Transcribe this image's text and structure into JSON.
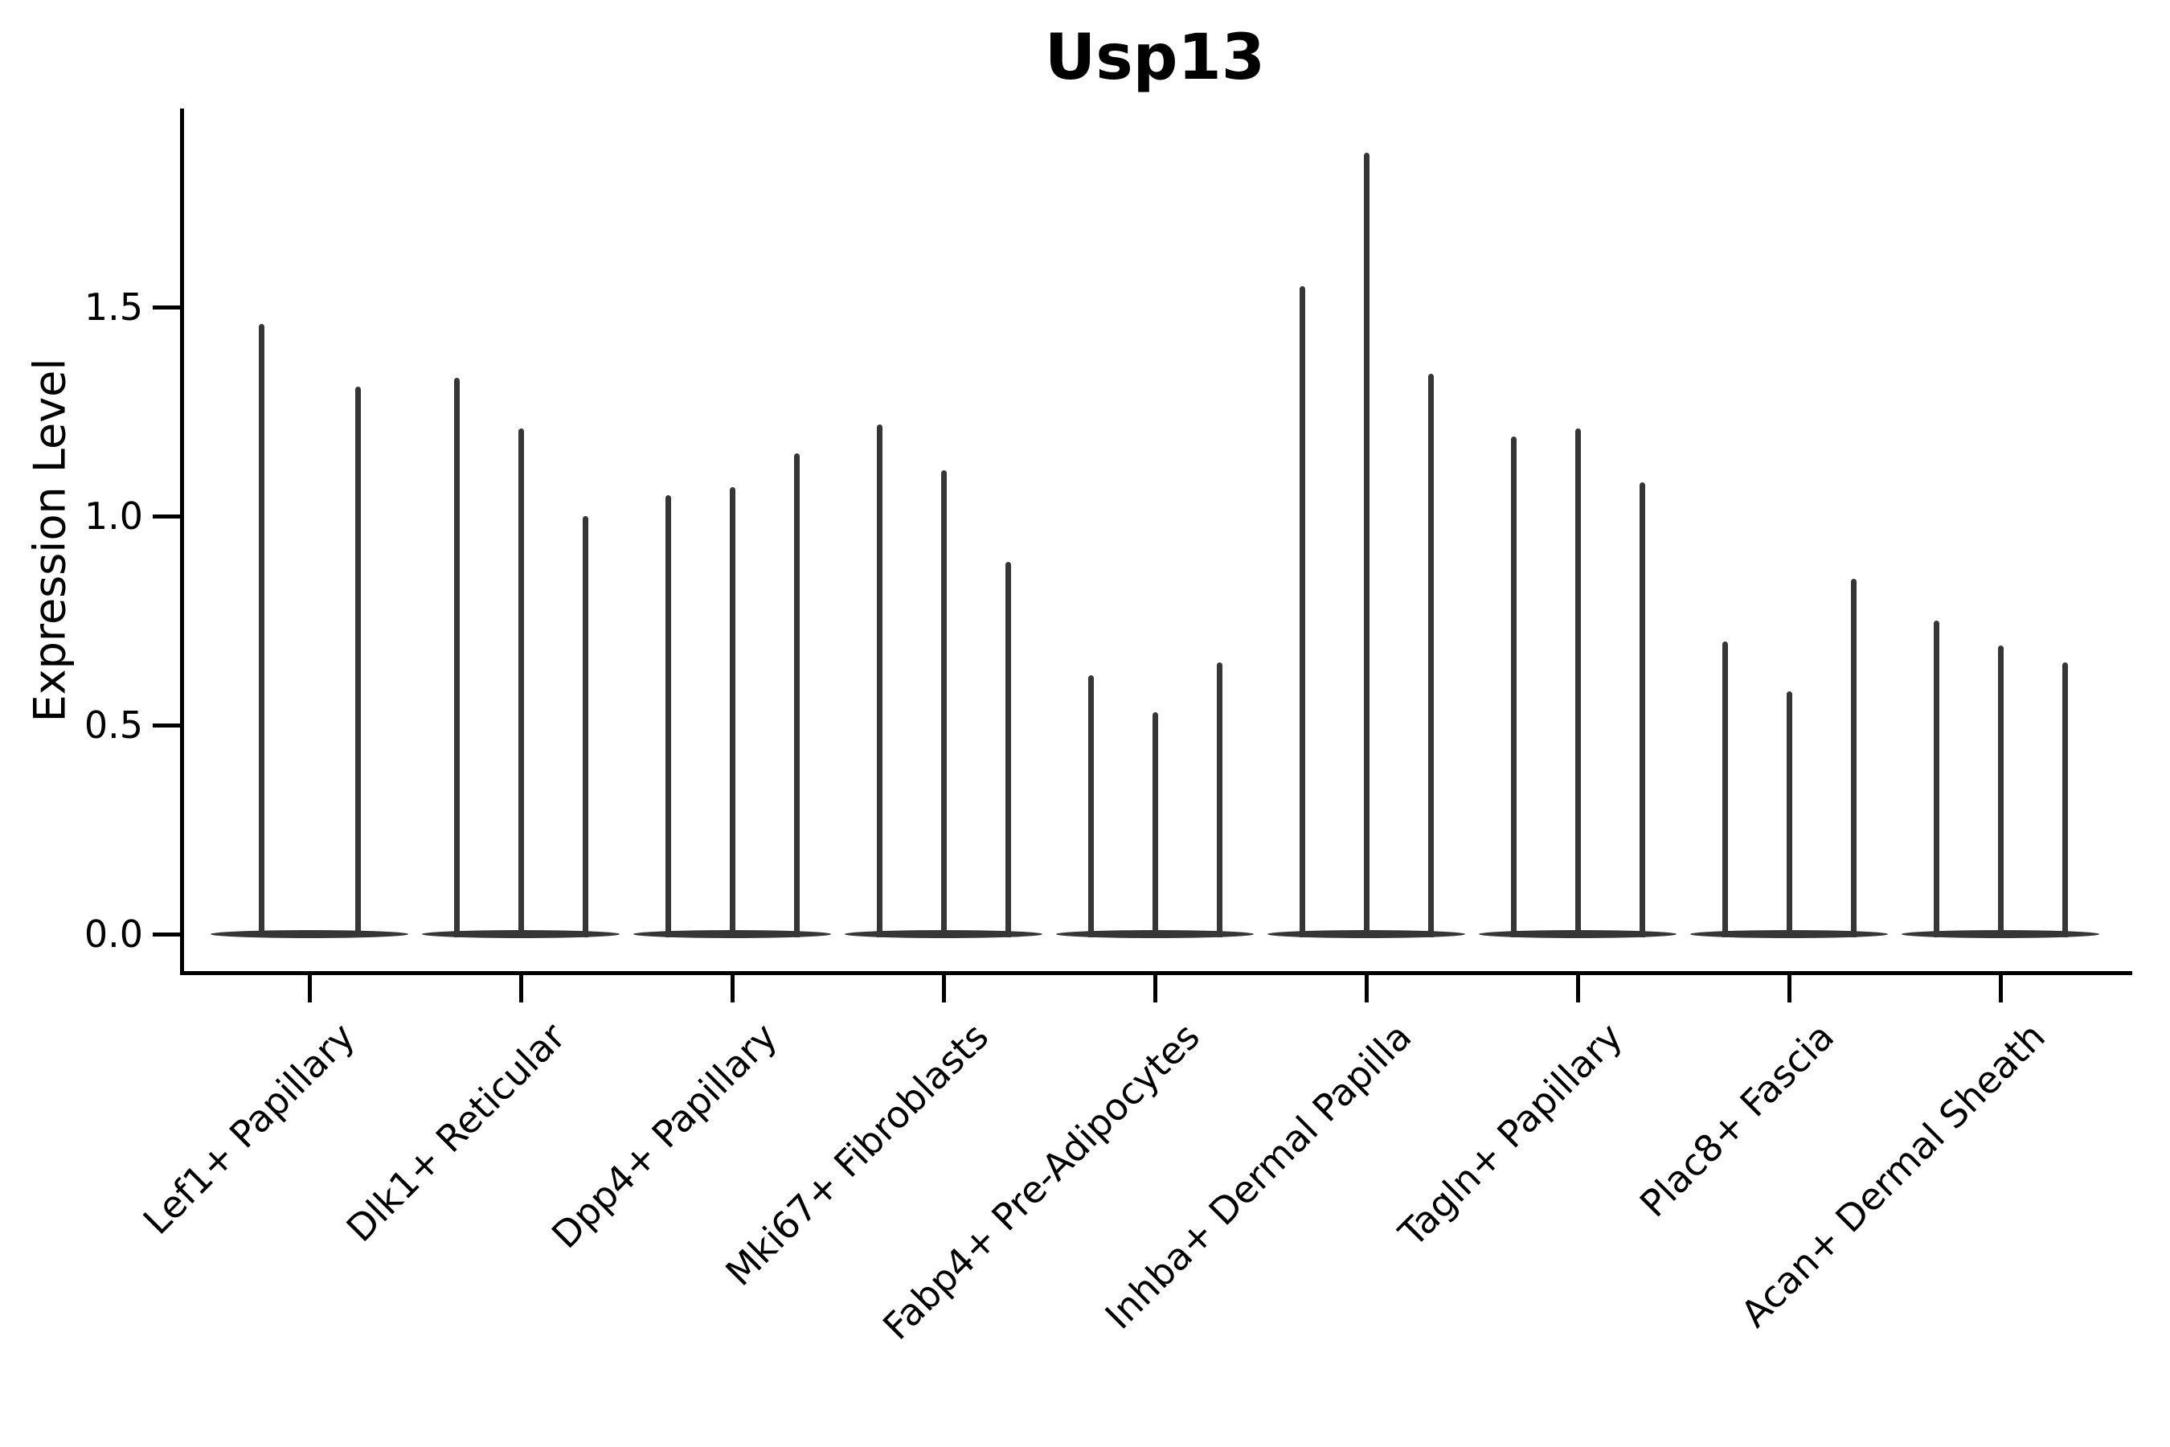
{
  "chart_data": {
    "type": "violin",
    "title": "Usp13",
    "xlabel": "",
    "ylabel": "Expression Level",
    "ylim": [
      -0.09,
      2.0
    ],
    "yticks": [
      0,
      0.5,
      1.0,
      1.5
    ],
    "ytick_labels": [
      "0.0",
      "0.5",
      "1.0",
      "1.5"
    ],
    "grid": false,
    "legend": "none",
    "categories": [
      "Lef1+ Papillary",
      "Dlk1+ Reticular",
      "Dpp4+ Papillary",
      "Mki67+ Fibroblasts",
      "Fabp4+ Pre-Adipocytes",
      "Inhba+ Dermal Papilla",
      "Tagln+ Papillary",
      "Plac8+ Fascia",
      "Acan+ Dermal Sheath"
    ],
    "violins": [
      {
        "category": "Lef1+ Papillary",
        "violin_max_expression": [
          1.46,
          1.31
        ]
      },
      {
        "category": "Dlk1+ Reticular",
        "violin_max_expression": [
          1.33,
          1.21,
          1.0
        ]
      },
      {
        "category": "Dpp4+ Papillary",
        "violin_max_expression": [
          1.05,
          1.07,
          1.15
        ]
      },
      {
        "category": "Mki67+ Fibroblasts",
        "violin_max_expression": [
          1.22,
          1.11,
          0.89
        ]
      },
      {
        "category": "Fabp4+ Pre-Adipocytes",
        "violin_max_expression": [
          0.62,
          0.53,
          0.65
        ]
      },
      {
        "category": "Inhba+ Dermal Papilla",
        "violin_max_expression": [
          1.55,
          1.87,
          1.34
        ]
      },
      {
        "category": "Tagln+ Papillary",
        "violin_max_expression": [
          1.19,
          1.21,
          1.08
        ]
      },
      {
        "category": "Plac8+ Fascia",
        "violin_max_expression": [
          0.7,
          0.58,
          0.85
        ]
      },
      {
        "category": "Acan+ Dermal Sheath",
        "violin_max_expression": [
          0.75,
          0.69,
          0.65
        ]
      }
    ],
    "shape_note": "Each violin is needle-shaped: density concentrated at 0 forming a flat lens-shaped base, with a thin vertical spike reaching the max expression value",
    "colors": {
      "violin": "#363636",
      "axis": "#000000",
      "text": "#000000",
      "background": "#ffffff"
    }
  }
}
